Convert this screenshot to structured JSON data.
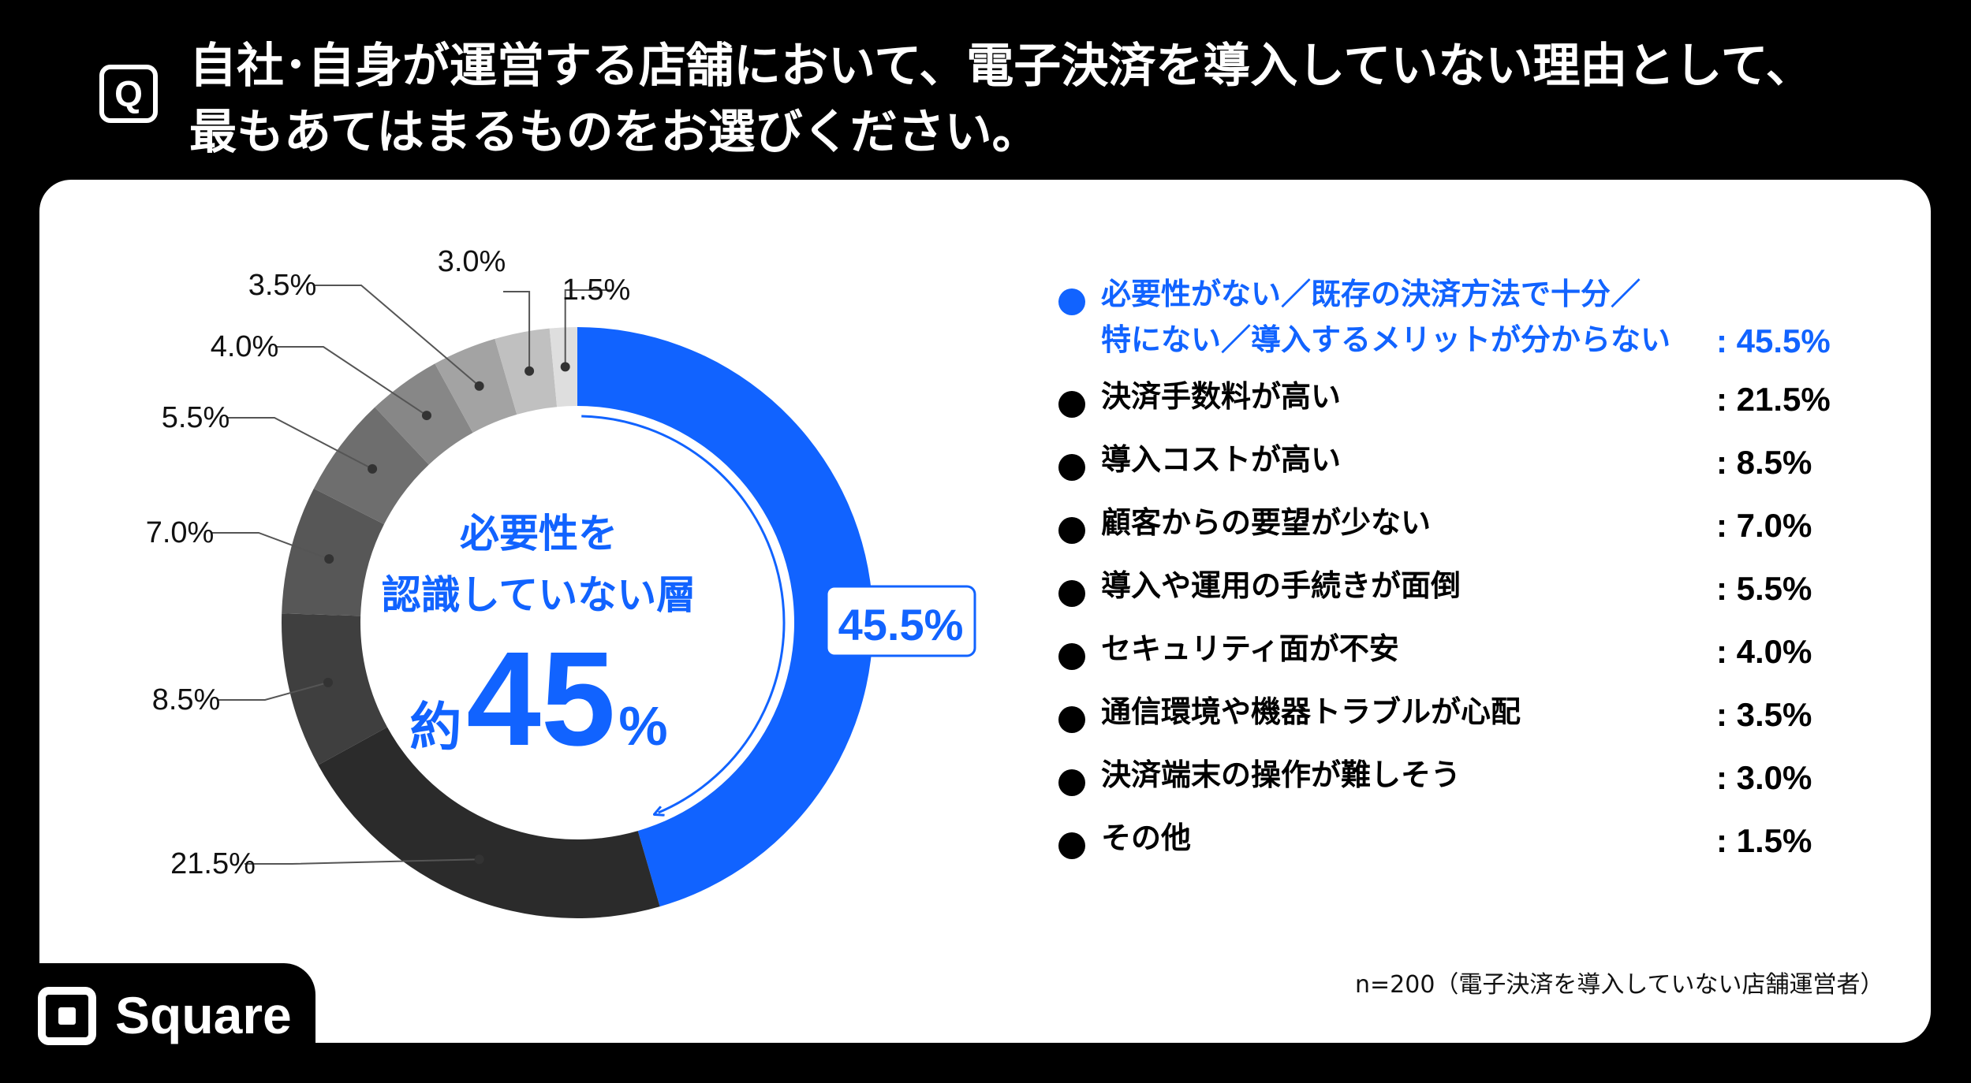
{
  "question": {
    "badge": "Q",
    "line1": "自社･自身が運営する店舗において、電子決済を導入していない理由として、",
    "line2": "最もあてはまるものをお選びください。"
  },
  "chart_data": {
    "type": "pie",
    "variant": "donut",
    "categories": [
      "必要性がない／既存の決済方法で十分／特にない／導入するメリットが分からない",
      "決済手数料が高い",
      "導入コストが高い",
      "顧客からの要望が少ない",
      "導入や運用の手続きが面倒",
      "セキュリティ面が不安",
      "通信環境や機器トラブルが心配",
      "決済端末の操作が難しそう",
      "その他"
    ],
    "values": [
      45.5,
      21.5,
      8.5,
      7.0,
      5.5,
      4.0,
      3.5,
      3.0,
      1.5
    ],
    "value_labels": [
      "45.5%",
      "21.5%",
      "8.5%",
      "7.0%",
      "5.5%",
      "4.0%",
      "3.5%",
      "3.0%",
      "1.5%"
    ],
    "colors": [
      "#1163ff",
      "#2b2b2b",
      "#3f3f3f",
      "#575757",
      "#6e6e6e",
      "#878787",
      "#a3a3a3",
      "#c0c0c0",
      "#dedede"
    ],
    "center_text": {
      "line1": "必要性を",
      "line2": "認識していない層",
      "approx_prefix": "約",
      "approx_number": "45",
      "approx_suffix": "%"
    },
    "unit": "%"
  },
  "legend": {
    "items": [
      {
        "line1": "必要性がない／既存の決済方法で十分／",
        "line2": "特にない／導入するメリットが分からない",
        "value": ": 45.5%",
        "color": "#1163ff",
        "highlight": true
      },
      {
        "line1": "決済手数料が高い",
        "value": ": 21.5%",
        "color": "#000000"
      },
      {
        "line1": "導入コストが高い",
        "value": ": 8.5%",
        "color": "#000000"
      },
      {
        "line1": "顧客からの要望が少ない",
        "value": ": 7.0%",
        "color": "#000000"
      },
      {
        "line1": "導入や運用の手続きが面倒",
        "value": ": 5.5%",
        "color": "#000000"
      },
      {
        "line1": "セキュリティ面が不安",
        "value": ": 4.0%",
        "color": "#000000"
      },
      {
        "line1": "通信環境や機器トラブルが心配",
        "value": ": 3.5%",
        "color": "#000000"
      },
      {
        "line1": "決済端末の操作が難しそう",
        "value": ": 3.0%",
        "color": "#000000"
      },
      {
        "line1": "その他",
        "value": ": 1.5%",
        "color": "#000000"
      }
    ]
  },
  "footnote": "n=200（電子決済を導入していない店舗運営者）",
  "brand": {
    "name": "Square",
    "accent": "#1163ff"
  }
}
